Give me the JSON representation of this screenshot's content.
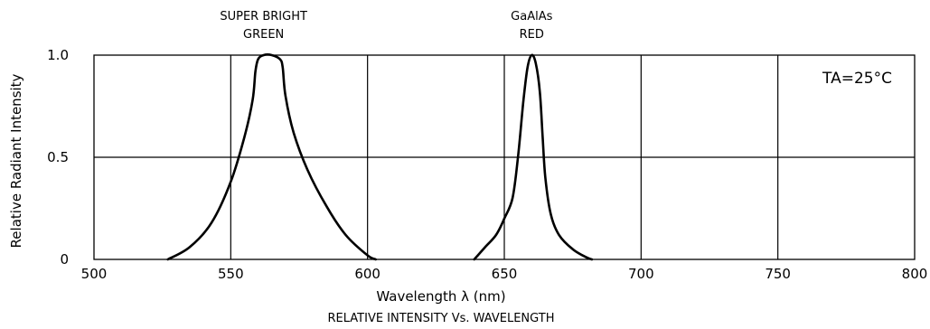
{
  "chart_data": {
    "type": "line",
    "title": "RELATIVE INTENSITY Vs. WAVELENGTH",
    "xlabel": "Wavelength λ (nm)",
    "ylabel": "Relative Radiant Intensity",
    "xlim": [
      500,
      800
    ],
    "ylim": [
      0,
      1.0
    ],
    "x_ticks": [
      "500",
      "550",
      "600",
      "650",
      "700",
      "750",
      "800"
    ],
    "y_ticks": [
      "0",
      "0.5",
      "1.0"
    ],
    "condition": "TA=25°C",
    "grid": true,
    "series": [
      {
        "name": "SUPER BRIGHT GREEN",
        "x": [
          527,
          535,
          543,
          550,
          555,
          558,
          559,
          560,
          562,
          565,
          568,
          569,
          570,
          573,
          578,
          585,
          592,
          600,
          603
        ],
        "y": [
          0,
          0.06,
          0.18,
          0.38,
          0.6,
          0.78,
          0.92,
          0.98,
          1.0,
          1.0,
          0.98,
          0.94,
          0.8,
          0.62,
          0.44,
          0.26,
          0.12,
          0.02,
          0
        ]
      },
      {
        "name": "GaAlAs RED",
        "x": [
          639,
          643,
          647,
          650,
          653,
          655,
          657,
          658.5,
          660,
          661.5,
          663,
          664,
          665,
          667,
          670,
          675,
          680,
          682
        ],
        "y": [
          0,
          0.06,
          0.12,
          0.2,
          0.3,
          0.5,
          0.78,
          0.94,
          1.0,
          0.96,
          0.82,
          0.6,
          0.4,
          0.22,
          0.12,
          0.05,
          0.01,
          0
        ]
      }
    ],
    "annotations": [
      {
        "lines": [
          "SUPER BRIGHT",
          "GREEN"
        ],
        "x": 562
      },
      {
        "lines": [
          "GaAlAs",
          "RED"
        ],
        "x": 660
      }
    ]
  }
}
